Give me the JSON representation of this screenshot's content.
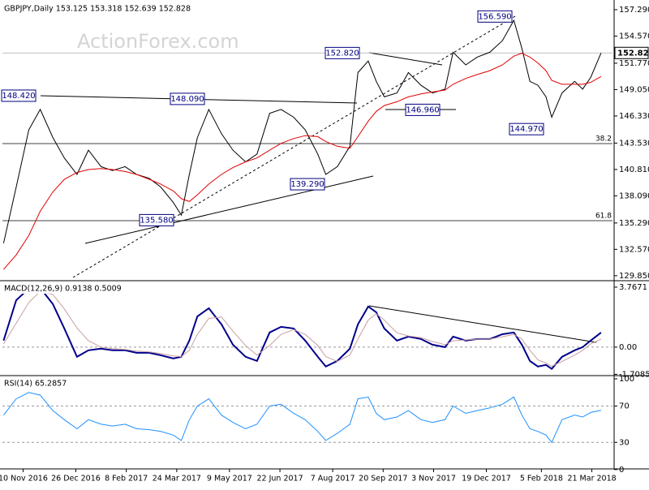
{
  "watermark": "ActionForex.com",
  "chart_data": [
    {
      "type": "line",
      "title": "GBPJPY,Daily  153.125 153.318 152.639 152.828",
      "x": [
        "2016-10-24",
        "2016-11-04",
        "2016-11-15",
        "2016-11-25",
        "2016-12-06",
        "2016-12-16",
        "2016-12-27",
        "2017-01-06",
        "2017-01-17",
        "2017-01-27",
        "2017-02-07",
        "2017-02-17",
        "2017-02-28",
        "2017-03-10",
        "2017-03-21",
        "2017-03-28",
        "2017-04-04",
        "2017-04-11",
        "2017-04-21",
        "2017-05-02",
        "2017-05-12",
        "2017-05-23",
        "2017-06-02",
        "2017-06-13",
        "2017-06-23",
        "2017-07-04",
        "2017-07-14",
        "2017-07-25",
        "2017-08-01",
        "2017-08-11",
        "2017-08-22",
        "2017-08-29",
        "2017-09-07",
        "2017-09-14",
        "2017-09-21",
        "2017-10-02",
        "2017-10-12",
        "2017-10-23",
        "2017-11-02",
        "2017-11-13",
        "2017-11-20",
        "2017-12-01",
        "2017-12-11",
        "2017-12-22",
        "2018-01-02",
        "2018-01-12",
        "2018-01-19",
        "2018-01-26",
        "2018-02-02",
        "2018-02-09",
        "2018-02-14",
        "2018-02-23",
        "2018-03-06",
        "2018-03-13",
        "2018-03-20",
        "2018-03-29"
      ],
      "series": [
        {
          "color": "#000000",
          "values": [
            133.2,
            139.0,
            144.9,
            147.0,
            144.1,
            142.0,
            140.3,
            142.8,
            141.1,
            140.7,
            141.1,
            140.3,
            139.9,
            139.0,
            137.4,
            136.1,
            140.3,
            144.1,
            147.0,
            144.5,
            142.8,
            141.6,
            142.4,
            146.6,
            147.0,
            146.2,
            144.9,
            142.4,
            140.3,
            141.1,
            143.2,
            150.8,
            152.0,
            149.9,
            148.3,
            148.7,
            150.8,
            149.5,
            148.7,
            149.1,
            152.9,
            151.6,
            152.4,
            152.9,
            154.1,
            156.2,
            153.3,
            149.9,
            149.5,
            148.3,
            146.2,
            148.7,
            149.9,
            149.1,
            150.3,
            152.828
          ]
        },
        {
          "color": "#e00000",
          "values": [
            130.5,
            132,
            134,
            136.5,
            138.5,
            139.8,
            140.5,
            140.8,
            140.9,
            140.8,
            140.6,
            140.3,
            139.8,
            139.3,
            138.6,
            137.8,
            137.5,
            138.2,
            139.3,
            140.3,
            141.0,
            141.6,
            142.0,
            142.8,
            143.5,
            144.0,
            144.3,
            144.2,
            143.7,
            143.2,
            143.0,
            144.2,
            145.8,
            146.8,
            147.4,
            147.8,
            148.3,
            148.6,
            148.8,
            149.0,
            149.6,
            150.2,
            150.6,
            151.0,
            151.6,
            152.5,
            152.8,
            152.4,
            151.8,
            151.0,
            150.0,
            149.6,
            149.6,
            149.6,
            149.8,
            150.4
          ]
        }
      ],
      "xlim": [
        "2016-10-23",
        "2018-04-08"
      ],
      "ylim": [
        129.42,
        158.04
      ],
      "yticks": [
        {
          "value": 157.29,
          "label": "157.290"
        },
        {
          "value": 154.57,
          "label": "154.570"
        },
        {
          "value": 151.77,
          "label": "151.770"
        },
        {
          "value": 149.05,
          "label": "149.050"
        },
        {
          "value": 146.33,
          "label": "146.330"
        },
        {
          "value": 143.53,
          "label": "143.530"
        },
        {
          "value": 140.81,
          "label": "140.810"
        },
        {
          "value": 138.09,
          "label": "138.090"
        },
        {
          "value": 135.29,
          "label": "135.290"
        },
        {
          "value": 132.57,
          "label": "132.570"
        },
        {
          "value": 129.85,
          "label": "129.850"
        }
      ],
      "last_price": 152.828,
      "annotations": [
        {
          "value": 156.59,
          "label": "156.590"
        },
        {
          "value": 152.82,
          "label": "152.820"
        },
        {
          "value": 148.42,
          "label": "148.420"
        },
        {
          "value": 148.09,
          "label": "148.090"
        },
        {
          "value": 146.96,
          "label": "146.960"
        },
        {
          "value": 144.97,
          "label": "144.970"
        },
        {
          "value": 139.29,
          "label": "139.290"
        },
        {
          "value": 135.58,
          "label": "135.580"
        }
      ],
      "fib_levels": [
        {
          "value": 143.48,
          "label": "38.2"
        },
        {
          "value": 135.53,
          "label": "61.8"
        }
      ]
    },
    {
      "type": "line",
      "title": "MACD(12,26,9) 0.9138 0.5009",
      "x": [
        "2016-10-24",
        "2016-11-04",
        "2016-11-15",
        "2016-11-25",
        "2016-12-06",
        "2016-12-16",
        "2016-12-27",
        "2017-01-06",
        "2017-01-17",
        "2017-01-27",
        "2017-02-07",
        "2017-02-17",
        "2017-02-28",
        "2017-03-10",
        "2017-03-21",
        "2017-03-28",
        "2017-04-04",
        "2017-04-11",
        "2017-04-21",
        "2017-05-02",
        "2017-05-12",
        "2017-05-23",
        "2017-06-02",
        "2017-06-13",
        "2017-06-23",
        "2017-07-04",
        "2017-07-14",
        "2017-07-25",
        "2017-08-01",
        "2017-08-11",
        "2017-08-22",
        "2017-08-29",
        "2017-09-07",
        "2017-09-14",
        "2017-09-21",
        "2017-10-02",
        "2017-10-12",
        "2017-10-23",
        "2017-11-02",
        "2017-11-13",
        "2017-11-20",
        "2017-12-01",
        "2017-12-11",
        "2017-12-22",
        "2018-01-02",
        "2018-01-12",
        "2018-01-19",
        "2018-01-26",
        "2018-02-02",
        "2018-02-09",
        "2018-02-14",
        "2018-02-23",
        "2018-03-06",
        "2018-03-13",
        "2018-03-20",
        "2018-03-29"
      ],
      "series": [
        {
          "color": "#00008b",
          "values": [
            0.41,
            2.95,
            3.67,
            3.72,
            2.7,
            1.17,
            -0.61,
            -0.2,
            -0.1,
            -0.2,
            -0.2,
            -0.36,
            -0.36,
            -0.51,
            -0.71,
            -0.61,
            0.41,
            1.93,
            2.44,
            1.43,
            0.15,
            -0.61,
            -0.87,
            0.92,
            1.27,
            1.17,
            0.41,
            -0.61,
            -1.22,
            -0.87,
            -0.1,
            1.43,
            2.55,
            2.19,
            1.17,
            0.41,
            0.66,
            0.51,
            0.15,
            0.0,
            0.66,
            0.41,
            0.51,
            0.51,
            0.81,
            0.92,
            0.15,
            -0.87,
            -1.22,
            -1.12,
            -1.37,
            -0.61,
            -0.2,
            0.0,
            0.41,
            0.9138
          ]
        },
        {
          "color": "#c8a0a0",
          "values": [
            0.2,
            1.5,
            2.8,
            3.5,
            3.3,
            2.4,
            1.2,
            0.4,
            0.0,
            -0.1,
            -0.15,
            -0.25,
            -0.3,
            -0.4,
            -0.55,
            -0.6,
            -0.2,
            0.8,
            1.8,
            1.9,
            1.0,
            0.1,
            -0.5,
            0.1,
            0.8,
            1.1,
            0.8,
            0.1,
            -0.6,
            -0.9,
            -0.5,
            0.5,
            1.7,
            2.1,
            1.7,
            0.9,
            0.7,
            0.6,
            0.35,
            0.15,
            0.4,
            0.45,
            0.5,
            0.5,
            0.65,
            0.8,
            0.5,
            -0.2,
            -0.8,
            -1.0,
            -1.2,
            -0.9,
            -0.5,
            -0.2,
            0.2,
            0.5009
          ]
        }
      ],
      "xlim": [
        "2016-10-23",
        "2018-04-08"
      ],
      "ylim": [
        -1.74,
        4.07
      ],
      "yticks": [
        3.7671,
        {
          "value": 0,
          "label": "0.00"
        },
        -1.7085
      ],
      "levels": [
        0
      ]
    },
    {
      "type": "line",
      "title": "RSI(14) 65.2857",
      "x": [
        "2016-10-24",
        "2016-11-04",
        "2016-11-15",
        "2016-11-25",
        "2016-12-06",
        "2016-12-16",
        "2016-12-27",
        "2017-01-06",
        "2017-01-17",
        "2017-01-27",
        "2017-02-07",
        "2017-02-17",
        "2017-02-28",
        "2017-03-10",
        "2017-03-21",
        "2017-03-28",
        "2017-04-04",
        "2017-04-11",
        "2017-04-21",
        "2017-05-02",
        "2017-05-12",
        "2017-05-23",
        "2017-06-02",
        "2017-06-13",
        "2017-06-23",
        "2017-07-04",
        "2017-07-14",
        "2017-07-25",
        "2017-08-01",
        "2017-08-11",
        "2017-08-22",
        "2017-08-29",
        "2017-09-07",
        "2017-09-14",
        "2017-09-21",
        "2017-10-02",
        "2017-10-12",
        "2017-10-23",
        "2017-11-02",
        "2017-11-13",
        "2017-11-20",
        "2017-12-01",
        "2017-12-11",
        "2017-12-22",
        "2018-01-02",
        "2018-01-12",
        "2018-01-19",
        "2018-01-26",
        "2018-02-02",
        "2018-02-09",
        "2018-02-14",
        "2018-02-23",
        "2018-03-06",
        "2018-03-13",
        "2018-03-20",
        "2018-03-29"
      ],
      "series": [
        {
          "color": "#1e90ff",
          "values": [
            60,
            78,
            85,
            82,
            65,
            55,
            45,
            55,
            50,
            48,
            50,
            45,
            44,
            42,
            38,
            32,
            55,
            70,
            78,
            60,
            52,
            45,
            50,
            70,
            72,
            62,
            55,
            42,
            32,
            40,
            50,
            78,
            80,
            62,
            55,
            58,
            65,
            55,
            52,
            55,
            70,
            62,
            65,
            68,
            72,
            80,
            60,
            45,
            42,
            38,
            30,
            55,
            60,
            58,
            63,
            65.2857
          ]
        }
      ],
      "xlim": [
        "2016-10-23",
        "2018-04-08"
      ],
      "ylim": [
        0.7,
        101.8
      ],
      "yticks": [
        100,
        70,
        30,
        0
      ],
      "levels": [
        30,
        70
      ],
      "xticks": [
        {
          "value": "2016-11-10",
          "label": "10 Nov 2016"
        },
        {
          "value": "2016-12-26",
          "label": "26 Dec 2016"
        },
        {
          "value": "2017-02-08",
          "label": "8 Feb 2017"
        },
        {
          "value": "2017-03-24",
          "label": "24 Mar 2017"
        },
        {
          "value": "2017-05-09",
          "label": "9 May 2017"
        },
        {
          "value": "2017-06-22",
          "label": "22 Jun 2017"
        },
        {
          "value": "2017-08-07",
          "label": "7 Aug 2017"
        },
        {
          "value": "2017-09-20",
          "label": "20 Sep 2017"
        },
        {
          "value": "2017-11-03",
          "label": "3 Nov 2017"
        },
        {
          "value": "2017-12-19",
          "label": "19 Dec 2017"
        },
        {
          "value": "2018-02-05",
          "label": "5 Feb 2018"
        },
        {
          "value": "2018-03-21",
          "label": "21 Mar 2018"
        }
      ]
    }
  ]
}
